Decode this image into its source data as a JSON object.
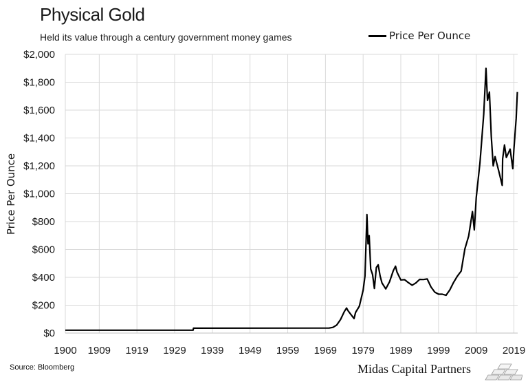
{
  "header": {
    "title": "Physical Gold",
    "subtitle": "Held its value through a century government money games"
  },
  "legend": {
    "label": "Price Per Ounce"
  },
  "footer": {
    "source": "Source: Bloomberg",
    "brand": "Midas Capital Partners"
  },
  "colors": {
    "line": "#000000",
    "grid": "#d9d9d9",
    "background": "#ffffff"
  },
  "chart_data": {
    "type": "line",
    "title": "Physical Gold",
    "subtitle": "Held its value through a century government money games",
    "xlabel": "",
    "ylabel": "Price Per Ounce",
    "xlim": [
      1900,
      2020
    ],
    "ylim": [
      0,
      2000
    ],
    "x_ticks": [
      1900,
      1909,
      1919,
      1929,
      1939,
      1949,
      1959,
      1969,
      1979,
      1989,
      1999,
      2009,
      2019
    ],
    "y_ticks": [
      0,
      200,
      400,
      600,
      800,
      1000,
      1200,
      1400,
      1600,
      1800,
      2000
    ],
    "y_tick_labels": [
      "$0",
      "$200",
      "$400",
      "$600",
      "$800",
      "$1,000",
      "$1,200",
      "$1,400",
      "$1,600",
      "$1,800",
      "$2,000"
    ],
    "grid": true,
    "legend_position": "top-right",
    "series": [
      {
        "name": "Price Per Ounce",
        "x": [
          1900,
          1933.9,
          1934,
          1970,
          1971,
          1972,
          1973,
          1974,
          1974.6,
          1975,
          1976,
          1976.6,
          1977,
          1978,
          1979,
          1979.5,
          1980,
          1980.3,
          1980.6,
          1981,
          1981.5,
          1982,
          1982.5,
          1983,
          1983.5,
          1984,
          1985,
          1986,
          1987,
          1987.6,
          1988,
          1989,
          1990,
          1991,
          1992,
          1993,
          1994,
          1995,
          1996,
          1997,
          1998,
          1999,
          2000,
          2001,
          2002,
          2003,
          2004,
          2005,
          2006,
          2007,
          2008,
          2008.5,
          2009,
          2010,
          2011,
          2011.6,
          2012,
          2012.5,
          2013,
          2013.5,
          2014,
          2015,
          2015.9,
          2016,
          2016.5,
          2017,
          2018,
          2018.7,
          2019,
          2019.6,
          2019.9
        ],
        "values": [
          20.67,
          20.67,
          35,
          36,
          41,
          58,
          97,
          154,
          180,
          160,
          125,
          104,
          148,
          193,
          307,
          410,
          850,
          640,
          700,
          460,
          420,
          320,
          470,
          490,
          410,
          360,
          317,
          368,
          447,
          480,
          437,
          381,
          383,
          362,
          343,
          360,
          385,
          384,
          388,
          331,
          294,
          279,
          279,
          271,
          310,
          364,
          409,
          445,
          604,
          697,
          872,
          740,
          972,
          1225,
          1571,
          1900,
          1669,
          1730,
          1411,
          1200,
          1266,
          1160,
          1060,
          1250,
          1350,
          1260,
          1320,
          1180,
          1320,
          1540,
          1730
        ]
      }
    ]
  }
}
